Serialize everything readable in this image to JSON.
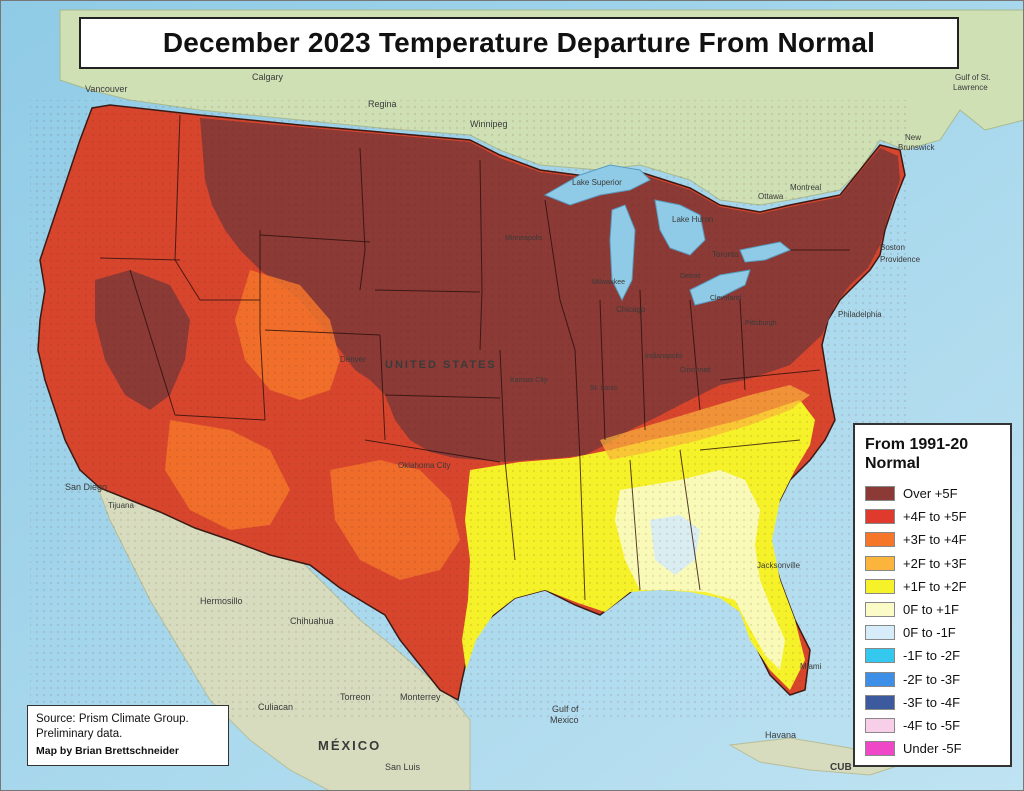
{
  "title": "December 2023 Temperature Departure From Normal",
  "legend": {
    "title_line1": "From 1991-20",
    "title_line2": "Normal",
    "items": [
      {
        "label": "Over +5F",
        "color": "#8b3a36"
      },
      {
        "label": "+4F to +5F",
        "color": "#e03a2e"
      },
      {
        "label": "+3F to +4F",
        "color": "#f5762a"
      },
      {
        "label": "+2F to +3F",
        "color": "#fbb43c"
      },
      {
        "label": "+1F to +2F",
        "color": "#f6f22a"
      },
      {
        "label": "0F to +1F",
        "color": "#fbfbc8"
      },
      {
        "label": "0F to -1F",
        "color": "#d6ecf8"
      },
      {
        "label": "-1F to -2F",
        "color": "#35c8ee"
      },
      {
        "label": "-2F to -3F",
        "color": "#3d8ee6"
      },
      {
        "label": "-3F to -4F",
        "color": "#3d5a9e"
      },
      {
        "label": "-4F to -5F",
        "color": "#f8cfe8"
      },
      {
        "label": "Under -5F",
        "color": "#f046c8"
      }
    ]
  },
  "source": {
    "line1": "Source: Prism Climate Group.",
    "line2": "Preliminary data.",
    "credit": "Map by Brian Brettschneider"
  },
  "places": {
    "vancouver": "Vancouver",
    "calgary": "Calgary",
    "regina": "Regina",
    "winnipeg": "Winnipeg",
    "gulf_st_lawrence_1": "Gulf of St.",
    "gulf_st_lawrence_2": "Lawrence",
    "new_brunswick_1": "New",
    "new_brunswick_2": "Brunswick",
    "ottawa": "Ottawa",
    "montreal": "Montreal",
    "toronto": "Toronto",
    "boston": "Boston",
    "providence": "Providence",
    "philadelphia": "Philadelphia",
    "lake_superior": "Lake Superior",
    "lake_huron": "Lake Huron",
    "chicago": "Chicago",
    "milwaukee": "Milwaukee",
    "detroit": "Detroit",
    "cleveland": "Cleveland",
    "pittsburgh": "Pittsburgh",
    "indianapolis": "Indianapolis",
    "cincinnati": "Cincinnati",
    "st_louis": "St. Louis",
    "kansas_city": "Kansas City",
    "minneapolis": "Minneapolis",
    "united_states": "UNITED STATES",
    "denver": "Denver",
    "oklahoma_city": "Oklahoma City",
    "san_diego": "San Diego",
    "tijuana": "Tijuana",
    "hermosillo": "Hermosillo",
    "chihuahua": "Chihuahua",
    "torreon": "Torreon",
    "monterrey": "Monterrey",
    "culiacan": "Culiacan",
    "mexico": "MÉXICO",
    "san_luis": "San Luis",
    "gulf_mexico_1": "Gulf of",
    "gulf_mexico_2": "Mexico",
    "jacksonville": "Jacksonville",
    "miami": "Miami",
    "havana": "Havana",
    "cuba": "CUB"
  }
}
